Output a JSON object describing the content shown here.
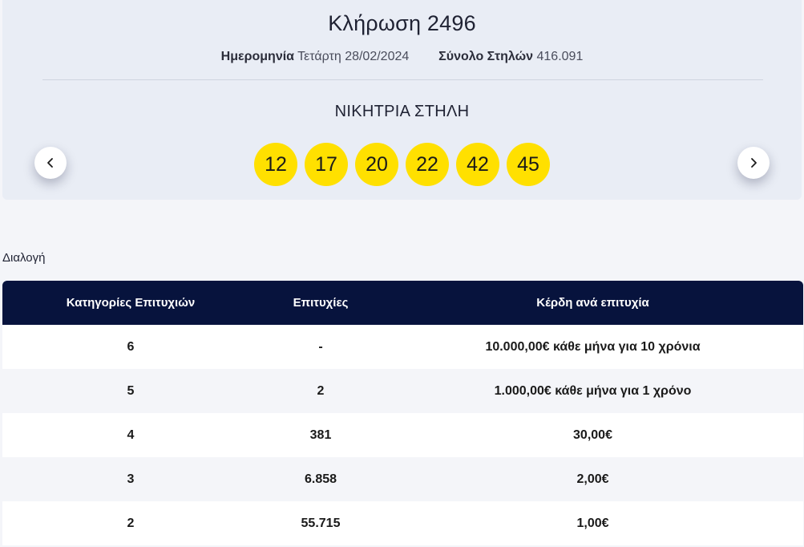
{
  "draw": {
    "title": "Κλήρωση 2496",
    "date_label": "Ημερομηνία",
    "date_value": "Τετάρτη 28/02/2024",
    "total_label": "Σύνολο Στηλών",
    "total_value": "416.091",
    "winning_label": "ΝΙΚΗΤΡΙΑ ΣΤΗΛΗ",
    "numbers": [
      "12",
      "17",
      "20",
      "22",
      "42",
      "45"
    ],
    "ball_color": "#ffe000"
  },
  "nav": {
    "prev_icon": "chevron-left-icon",
    "next_icon": "chevron-right-icon"
  },
  "section": {
    "label": "Διαλογή"
  },
  "table": {
    "header_color": "#07133d",
    "headers": [
      "Κατηγορίες Επιτυχιών",
      "Επιτυχίες",
      "Κέρδη ανά επιτυχία"
    ],
    "rows": [
      {
        "category": "6",
        "winners": "-",
        "prize": "10.000,00€ κάθε μήνα για 10 χρόνια"
      },
      {
        "category": "5",
        "winners": "2",
        "prize": "1.000,00€ κάθε μήνα για 1 χρόνο"
      },
      {
        "category": "4",
        "winners": "381",
        "prize": "30,00€"
      },
      {
        "category": "3",
        "winners": "6.858",
        "prize": "2,00€"
      },
      {
        "category": "2",
        "winners": "55.715",
        "prize": "1,00€"
      }
    ]
  }
}
